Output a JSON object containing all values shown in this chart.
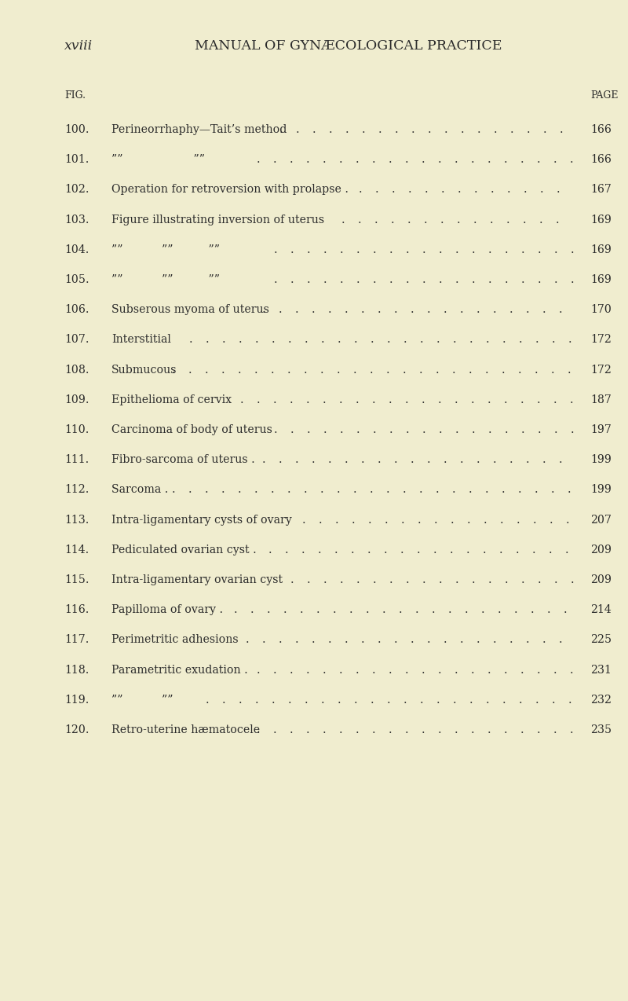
{
  "bg_color": "#f0edcf",
  "text_color": "#2b2b2b",
  "header_left": "xviii",
  "header_center": "MANUAL OF GYNÆCOLOGICAL PRACTICE",
  "col_left_label": "FIG.",
  "col_right_label": "PAGE",
  "entries": [
    {
      "fig": "100.",
      "desc": "Perineorrhaphy—Tait’s method",
      "page": "166"
    },
    {
      "fig": "101.",
      "desc": "””                    ””",
      "page": "166"
    },
    {
      "fig": "102.",
      "desc": "Operation for retroversion with prolapse .",
      "page": "167"
    },
    {
      "fig": "103.",
      "desc": "Figure illustrating inversion of uterus",
      "page": "169"
    },
    {
      "fig": "104.",
      "desc": "””           ””          ””",
      "page": "169"
    },
    {
      "fig": "105.",
      "desc": "””           ””          ””",
      "page": "169"
    },
    {
      "fig": "106.",
      "desc": "Subserous myoma of uterus",
      "page": "170"
    },
    {
      "fig": "107.",
      "desc": "Interstitial",
      "page": "172"
    },
    {
      "fig": "108.",
      "desc": "Submucous",
      "page": "172"
    },
    {
      "fig": "109.",
      "desc": "Epithelioma of cervix",
      "page": "187"
    },
    {
      "fig": "110.",
      "desc": "Carcinoma of body of uterus",
      "page": "197"
    },
    {
      "fig": "111.",
      "desc": "Fibro-sarcoma of uterus .",
      "page": "199"
    },
    {
      "fig": "112.",
      "desc": "Sarcoma .",
      "page": "199"
    },
    {
      "fig": "113.",
      "desc": "Intra-ligamentary cysts of ovary",
      "page": "207"
    },
    {
      "fig": "114.",
      "desc": "Pediculated ovarian cyst .",
      "page": "209"
    },
    {
      "fig": "115.",
      "desc": "Intra-ligamentary ovarian cyst",
      "page": "209"
    },
    {
      "fig": "116.",
      "desc": "Papilloma of ovary .",
      "page": "214"
    },
    {
      "fig": "117.",
      "desc": "Perimetritic adhesions",
      "page": "225"
    },
    {
      "fig": "118.",
      "desc": "Parametritic exudation .",
      "page": "231"
    },
    {
      "fig": "119.",
      "desc": "””           ””",
      "page": "232"
    },
    {
      "fig": "120.",
      "desc": "Retro-uterine hæmatocele",
      "page": "235"
    }
  ],
  "figsize": [
    8.0,
    12.74
  ],
  "dpi": 100
}
